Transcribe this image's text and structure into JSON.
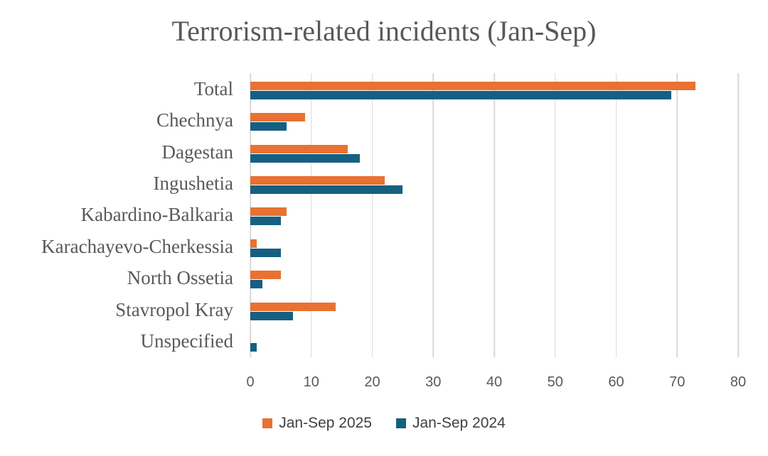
{
  "chart_data": {
    "type": "bar",
    "orientation": "horizontal",
    "title": "Terrorism-related incidents (Jan-Sep)",
    "categories": [
      "Total",
      "Chechnya",
      "Dagestan",
      "Ingushetia",
      "Kabardino-Balkaria",
      "Karachayevo-Cherkessia",
      "North Ossetia",
      "Stavropol Kray",
      "Unspecified"
    ],
    "series": [
      {
        "name": "Jan-Sep 2025",
        "color": "#E97132",
        "values": [
          73,
          9,
          16,
          22,
          6,
          1,
          5,
          14,
          0
        ]
      },
      {
        "name": "Jan-Sep 2024",
        "color": "#156082",
        "values": [
          69,
          6,
          18,
          25,
          5,
          5,
          2,
          7,
          1
        ]
      }
    ],
    "xlim": [
      0,
      80
    ],
    "xticks": [
      0,
      10,
      20,
      30,
      40,
      50,
      60,
      70,
      80
    ],
    "grid": true,
    "legend_position": "bottom"
  },
  "colors": {
    "grid": "#d9d9d9",
    "title_text": "#595959",
    "category_text": "#595959",
    "tick_text": "#595959",
    "legend_text": "#404040",
    "background": "#ffffff"
  }
}
